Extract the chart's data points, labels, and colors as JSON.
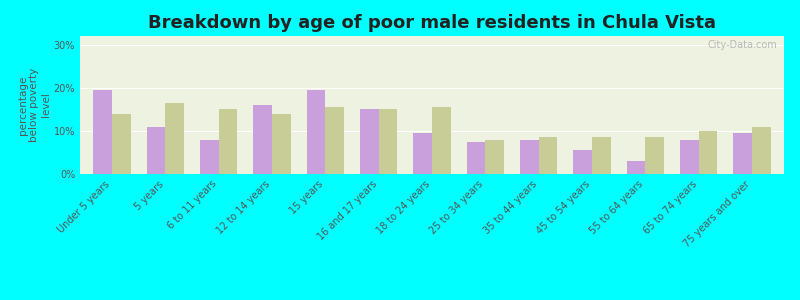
{
  "title": "Breakdown by age of poor male residents in Chula Vista",
  "ylabel": "percentage\nbelow poverty\nlevel",
  "categories": [
    "Under 5 years",
    "5 years",
    "6 to 11 years",
    "12 to 14 years",
    "15 years",
    "16 and 17 years",
    "18 to 24 years",
    "25 to 34 years",
    "35 to 44 years",
    "45 to 54 years",
    "55 to 64 years",
    "65 to 74 years",
    "75 years and over"
  ],
  "chula_vista": [
    19.5,
    11.0,
    8.0,
    16.0,
    19.5,
    15.0,
    9.5,
    7.5,
    8.0,
    5.5,
    3.0,
    8.0,
    9.5
  ],
  "california": [
    14.0,
    16.5,
    15.0,
    14.0,
    15.5,
    15.0,
    15.5,
    8.0,
    8.5,
    8.5,
    8.5,
    10.0,
    11.0
  ],
  "chula_color": "#c9a0dc",
  "california_color": "#c8cc96",
  "background_color": "#00ffff",
  "plot_bg": "#eef2e0",
  "ylim": [
    0,
    32
  ],
  "yticks": [
    0,
    10,
    20,
    30
  ],
  "ytick_labels": [
    "0%",
    "10%",
    "20%",
    "30%"
  ],
  "title_fontsize": 13,
  "axis_label_fontsize": 7.5,
  "tick_fontsize": 7,
  "legend_fontsize": 9,
  "watermark": "City-Data.com"
}
